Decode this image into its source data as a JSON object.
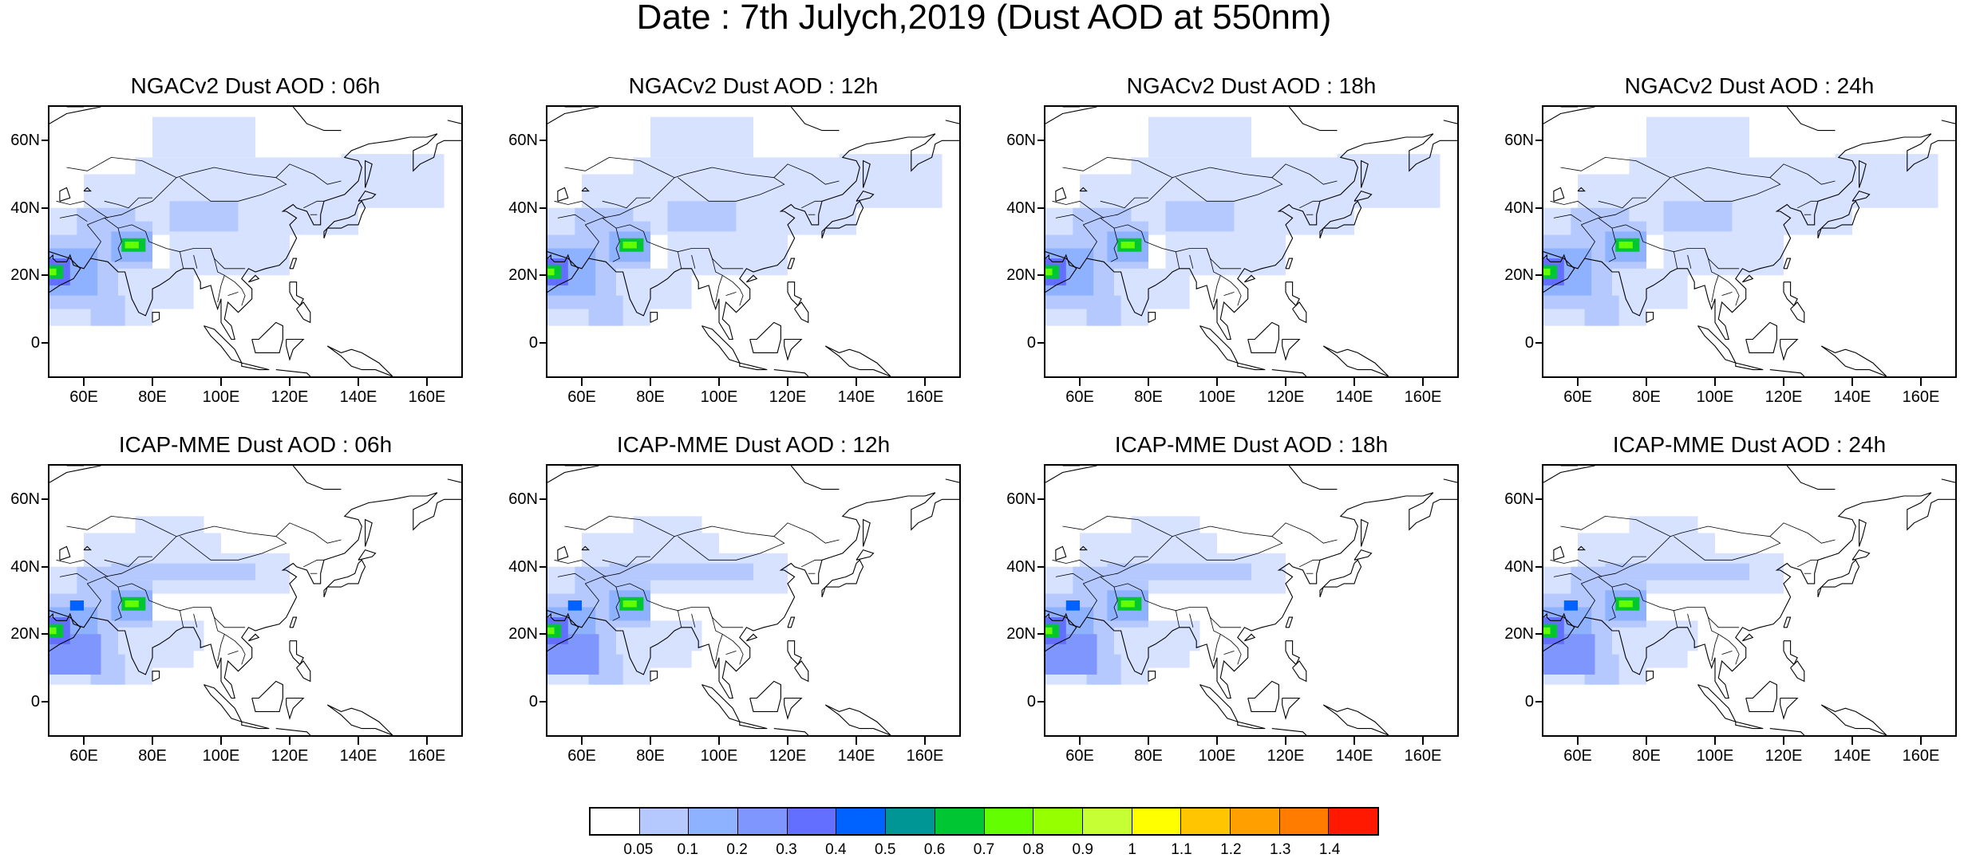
{
  "title": "Date : 7th Julych,2019 (Dust AOD at 550nm)",
  "lat_labels": [
    "60N",
    "40N",
    "20N",
    "0"
  ],
  "lon_labels": [
    "60E",
    "80E",
    "100E",
    "120E",
    "140E",
    "160E"
  ],
  "panels": [
    {
      "title": "NGACv2 Dust AOD : 06h"
    },
    {
      "title": "NGACv2 Dust AOD : 12h"
    },
    {
      "title": "NGACv2 Dust AOD : 18h"
    },
    {
      "title": "NGACv2 Dust AOD : 24h"
    },
    {
      "title": "ICAP-MME Dust AOD : 06h"
    },
    {
      "title": "ICAP-MME Dust AOD : 12h"
    },
    {
      "title": "ICAP-MME Dust AOD : 18h"
    },
    {
      "title": "ICAP-MME Dust AOD : 24h"
    }
  ],
  "colorbar": {
    "labels": [
      "0.05",
      "0.1",
      "0.2",
      "0.3",
      "0.4",
      "0.5",
      "0.6",
      "0.7",
      "0.8",
      "0.9",
      "1",
      "1.1",
      "1.2",
      "1.3",
      "1.4"
    ],
    "colors": [
      "#ffffff",
      "#d6e2ff",
      "#b5c9ff",
      "#8eb2ff",
      "#7f96ff",
      "#6370ff",
      "#0063ff",
      "#009696",
      "#00c633",
      "#63ff00",
      "#96ff00",
      "#c6ff33",
      "#ffff00",
      "#ffc600",
      "#ffa000",
      "#ff7c00",
      "#ff1900"
    ]
  }
}
